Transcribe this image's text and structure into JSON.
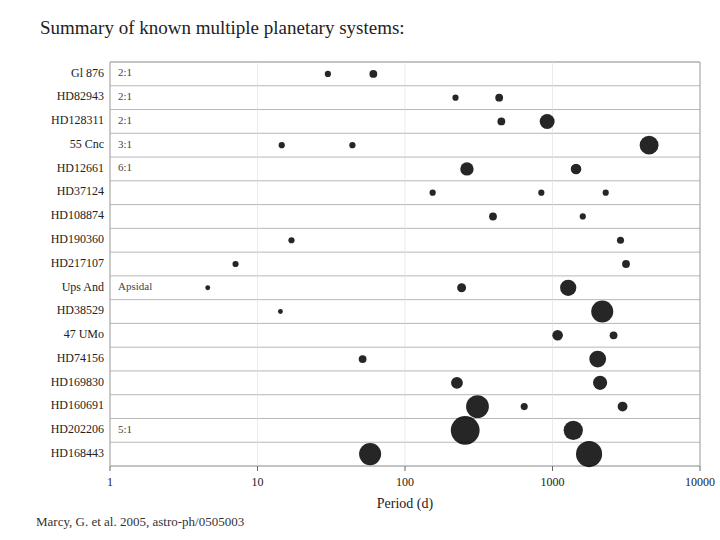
{
  "chart_data": {
    "type": "scatter",
    "title": "Summary of known multiple planetary systems:",
    "x_label": "Period (d)",
    "annotations": [
      "Marcy, G. et al. 2005, astro-ph/0505003"
    ],
    "log": "x",
    "xlim": [
      1,
      10000
    ],
    "xticks": [
      1,
      10,
      100,
      1000,
      10000
    ],
    "color": "#000000",
    "marker": "circle",
    "categories": [
      "Gl 876",
      "HD82943",
      "HD128311",
      "55 Cnc",
      "HD12661",
      "HD37124",
      "HD108874",
      "HD190360",
      "HD217107",
      "Ups And",
      "HD38529",
      "47 UMo",
      "HD74156",
      "HD169830",
      "HD160691",
      "HD202206",
      "HD168443"
    ],
    "row_labels": [
      "2:1",
      "2:1",
      "2:1",
      "3:1",
      "6:1",
      null,
      null,
      null,
      null,
      "Apsidal",
      null,
      null,
      null,
      null,
      null,
      "5:1",
      null
    ],
    "x": [
      30,
      61,
      220,
      435,
      450,
      920,
      14.6,
      44,
      4517,
      263,
      1444,
      154,
      840,
      2295,
      395,
      1605,
      17,
      2891,
      7.1,
      3150,
      4.6,
      242,
      1278,
      14.3,
      2174,
      1083,
      2594,
      51.6,
      2025,
      225,
      2102,
      310,
      643,
      2986,
      256,
      1383,
      58,
      1770
    ],
    "y": [
      "Gl 876",
      "Gl 876",
      "HD82943",
      "HD82943",
      "HD128311",
      "HD128311",
      "55 Cnc",
      "55 Cnc",
      "55 Cnc",
      "HD12661",
      "HD12661",
      "HD37124",
      "HD37124",
      "HD37124",
      "HD108874",
      "HD108874",
      "HD190360",
      "HD190360",
      "HD217107",
      "HD217107",
      "Ups And",
      "Ups And",
      "Ups And",
      "HD38529",
      "HD38529",
      "47 UMo",
      "47 UMo",
      "HD74156",
      "HD74156",
      "HD169830",
      "HD169830",
      "HD160691",
      "HD160691",
      "HD160691",
      "HD202206",
      "HD202206",
      "HD168443",
      "HD168443"
    ],
    "size": [
      1,
      2,
      1,
      2,
      2,
      14,
      1,
      1,
      28,
      10,
      5,
      1,
      1,
      1,
      2,
      1,
      1,
      1.5,
      1,
      2,
      0.5,
      3,
      18,
      0.5,
      45,
      5,
      2,
      2,
      20,
      7,
      12,
      50,
      1.5,
      4,
      100,
      30,
      45,
      75
    ]
  }
}
